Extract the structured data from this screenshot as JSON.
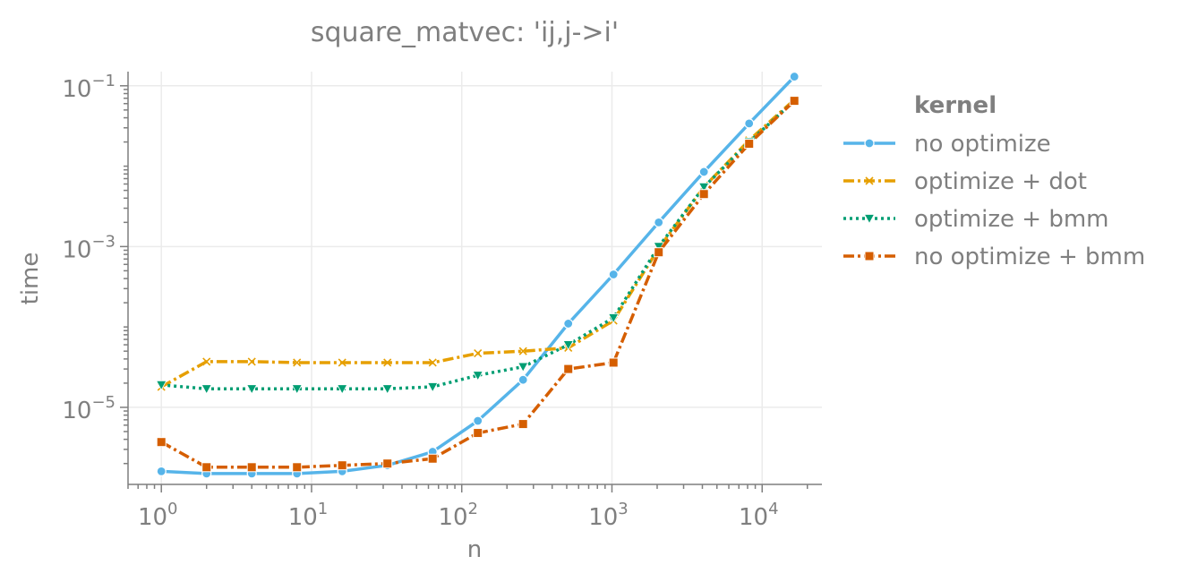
{
  "chart_data": {
    "type": "line",
    "title": "square_matvec: 'ij,j->i'",
    "xlabel": "n",
    "ylabel": "time",
    "xscale": "log",
    "yscale": "log",
    "xlim": [
      0.6,
      25000
    ],
    "ylim": [
      1.1e-06,
      0.15
    ],
    "grid": true,
    "x_ticks": [
      {
        "base": "10",
        "exp": "0",
        "value": 1
      },
      {
        "base": "10",
        "exp": "1",
        "value": 10
      },
      {
        "base": "10",
        "exp": "2",
        "value": 100
      },
      {
        "base": "10",
        "exp": "3",
        "value": 1000
      },
      {
        "base": "10",
        "exp": "4",
        "value": 10000
      }
    ],
    "y_ticks": [
      {
        "base": "10",
        "exp": "−5",
        "value": 1e-05
      },
      {
        "base": "10",
        "exp": "−3",
        "value": 0.001
      },
      {
        "base": "10",
        "exp": "−1",
        "value": 0.1
      }
    ],
    "legend": {
      "title": "kernel",
      "position": "right"
    },
    "x": [
      1,
      2,
      4,
      8,
      16,
      32,
      64,
      128,
      256,
      512,
      1024,
      2048,
      4096,
      8192,
      16384
    ],
    "series": [
      {
        "name": "no optimize",
        "color": "#56b4e9",
        "dash": "",
        "marker": "circle",
        "values": [
          1.6e-06,
          1.5e-06,
          1.5e-06,
          1.5e-06,
          1.6e-06,
          1.9e-06,
          2.8e-06,
          6.8e-06,
          2.2e-05,
          0.00011,
          0.00045,
          0.002,
          0.0085,
          0.034,
          0.13
        ]
      },
      {
        "name": "optimize + dot",
        "color": "#e69f00",
        "dash": "12,4,3,4",
        "marker": "x",
        "values": [
          1.8e-05,
          3.7e-05,
          3.7e-05,
          3.6e-05,
          3.6e-05,
          3.6e-05,
          3.6e-05,
          4.7e-05,
          5e-05,
          5.5e-05,
          0.00012,
          0.00095,
          0.0055,
          0.021,
          0.067
        ]
      },
      {
        "name": "optimize + bmm",
        "color": "#009e73",
        "dash": "3,4",
        "marker": "triangle-down",
        "values": [
          1.9e-05,
          1.7e-05,
          1.7e-05,
          1.7e-05,
          1.7e-05,
          1.7e-05,
          1.8e-05,
          2.5e-05,
          3.2e-05,
          6e-05,
          0.00013,
          0.001,
          0.0055,
          0.02,
          0.065
        ]
      },
      {
        "name": "no optimize + bmm",
        "color": "#d55e00",
        "dash": "12,4,3,4",
        "marker": "square",
        "values": [
          3.7e-06,
          1.8e-06,
          1.8e-06,
          1.8e-06,
          1.9e-06,
          2e-06,
          2.3e-06,
          4.8e-06,
          6.2e-06,
          3e-05,
          3.6e-05,
          0.00085,
          0.0045,
          0.019,
          0.065
        ]
      }
    ]
  }
}
